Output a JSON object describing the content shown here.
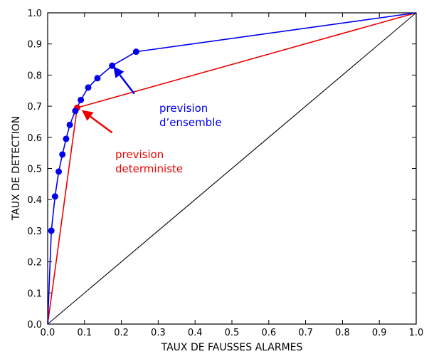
{
  "chart_data": {
    "type": "line",
    "title": "",
    "xlabel": "TAUX DE FAUSSES ALARMES",
    "ylabel": "TAUX DE DETECTION",
    "xlim": [
      0,
      1
    ],
    "ylim": [
      0,
      1
    ],
    "xticks": [
      0.0,
      0.1,
      0.2,
      0.3,
      0.4,
      0.5,
      0.6,
      0.7,
      0.8,
      0.9,
      1.0
    ],
    "yticks": [
      0.0,
      0.1,
      0.2,
      0.3,
      0.4,
      0.5,
      0.6,
      0.7,
      0.8,
      0.9,
      1.0
    ],
    "xtick_labels": [
      "0.0",
      "0.1",
      "0.2",
      "0.3",
      "0.4",
      "0.5",
      "0.6",
      "0.7",
      "0.8",
      "0.9",
      "1.0"
    ],
    "ytick_labels": [
      "0.0",
      "0.1",
      "0.2",
      "0.3",
      "0.4",
      "0.5",
      "0.6",
      "0.7",
      "0.8",
      "0.9",
      "1.0"
    ],
    "grid": false,
    "series": [
      {
        "color": "#0000ee",
        "markers": true,
        "points": [
          [
            0.0,
            0.0
          ],
          [
            0.01,
            0.3
          ],
          [
            0.02,
            0.41
          ],
          [
            0.03,
            0.49
          ],
          [
            0.04,
            0.545
          ],
          [
            0.05,
            0.595
          ],
          [
            0.06,
            0.64
          ],
          [
            0.075,
            0.685
          ],
          [
            0.09,
            0.72
          ],
          [
            0.11,
            0.76
          ],
          [
            0.135,
            0.79
          ],
          [
            0.175,
            0.83
          ],
          [
            0.24,
            0.875
          ],
          [
            1.0,
            1.0
          ]
        ],
        "marker_points": [
          [
            0.01,
            0.3
          ],
          [
            0.02,
            0.41
          ],
          [
            0.03,
            0.49
          ],
          [
            0.04,
            0.545
          ],
          [
            0.05,
            0.595
          ],
          [
            0.06,
            0.64
          ],
          [
            0.075,
            0.685
          ],
          [
            0.09,
            0.72
          ],
          [
            0.11,
            0.76
          ],
          [
            0.135,
            0.79
          ],
          [
            0.175,
            0.83
          ],
          [
            0.24,
            0.875
          ]
        ]
      },
      {
        "color": "#ee0000",
        "markers": true,
        "points": [
          [
            0.0,
            0.0
          ],
          [
            0.08,
            0.695
          ],
          [
            1.0,
            1.0
          ]
        ],
        "marker_points": [
          [
            0.08,
            0.695
          ]
        ]
      },
      {
        "color": "#000000",
        "markers": false,
        "points": [
          [
            0.0,
            0.0
          ],
          [
            1.0,
            1.0
          ]
        ],
        "marker_points": []
      }
    ],
    "annotations": [
      {
        "lines": [
          "prevision",
          "d’ensemble"
        ],
        "color": "#0000ee",
        "arrow_from": [
          0.235,
          0.74
        ],
        "arrow_to": [
          0.18,
          0.825
        ]
      },
      {
        "lines": [
          "prevision",
          "deterministe"
        ],
        "color": "#ee0000",
        "arrow_from": [
          0.175,
          0.615
        ],
        "arrow_to": [
          0.095,
          0.685
        ]
      }
    ]
  }
}
